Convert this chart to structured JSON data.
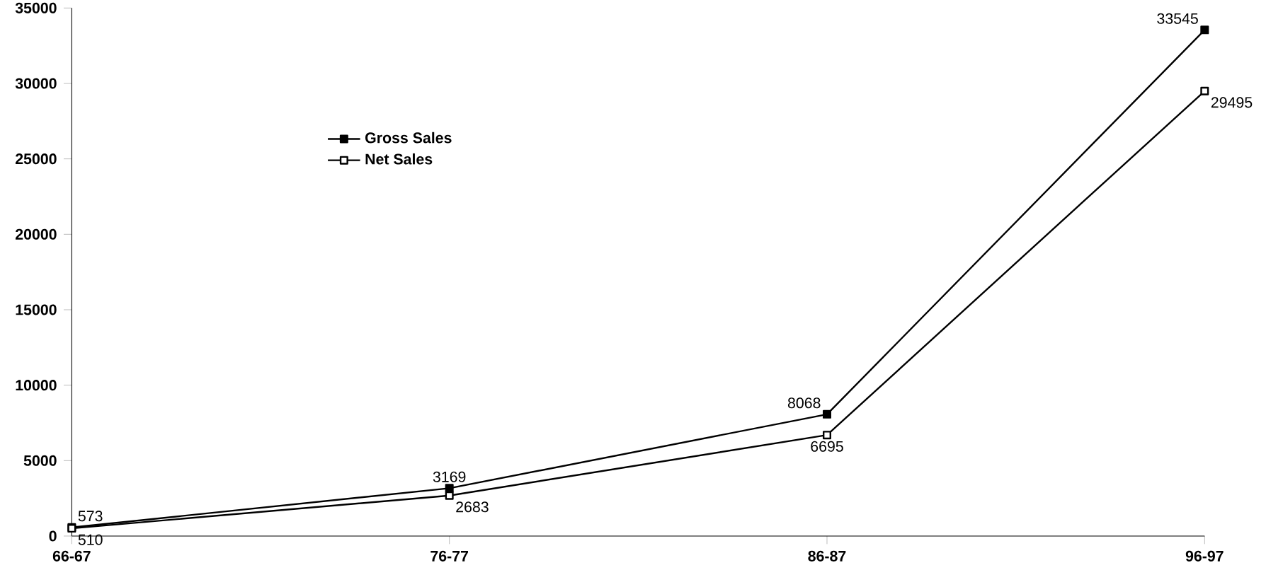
{
  "chart_data": {
    "type": "line",
    "categories": [
      "66-67",
      "76-77",
      "86-87",
      "96-97"
    ],
    "series": [
      {
        "name": "Gross Sales",
        "color": "#000000",
        "values": [
          573,
          3169,
          8068,
          33545
        ]
      },
      {
        "name": "Net Sales",
        "color": "#000000",
        "values": [
          510,
          2683,
          6695,
          29495
        ]
      }
    ],
    "ylim": [
      0,
      35000
    ],
    "yticks": [
      0,
      5000,
      10000,
      15000,
      20000,
      25000,
      30000,
      35000
    ],
    "data_labels": true,
    "legend": "top left",
    "marker": "square",
    "grid": false,
    "line_style": "solid"
  }
}
